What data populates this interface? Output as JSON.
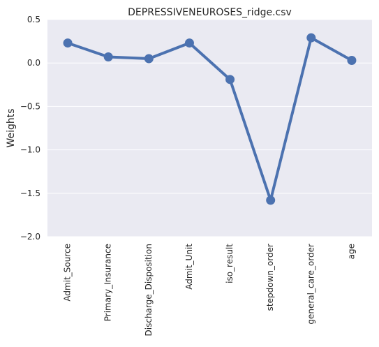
{
  "chart_data": {
    "type": "line",
    "title": "DEPRESSIVENEUROSES_ridge.csv",
    "xlabel": "",
    "ylabel": "Weights",
    "categories": [
      "Admit_Source",
      "Primary_Insurance",
      "Discharge_Disposition",
      "Admit_Unit",
      "iso_result",
      "stepdown_order",
      "general_care_order",
      "age"
    ],
    "values": [
      0.23,
      0.07,
      0.05,
      0.23,
      -0.19,
      -1.58,
      0.29,
      0.03
    ],
    "ylim": [
      -2.0,
      0.5
    ],
    "yticks": [
      -2.0,
      -1.5,
      -1.0,
      -0.5,
      0.0,
      0.5
    ],
    "ytick_labels": [
      "−2.0",
      "−1.5",
      "−1.0",
      "−0.5",
      "0.0",
      "0.5"
    ],
    "grid": true,
    "colors": {
      "series": "#4c72b0",
      "background": "#eaeaf2",
      "grid": "#ffffff"
    },
    "markers": true
  }
}
